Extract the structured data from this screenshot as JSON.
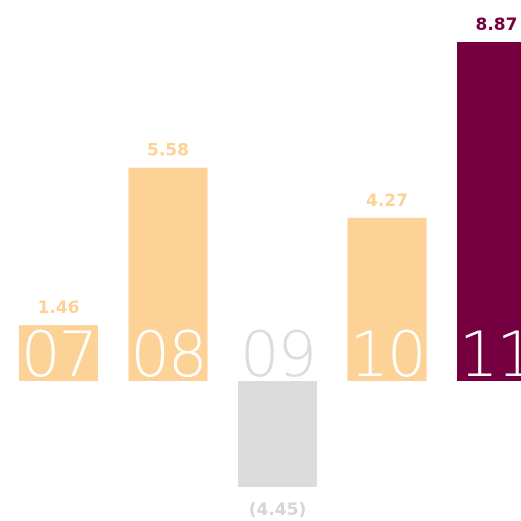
{
  "chart_data": {
    "type": "bar",
    "title": "",
    "xlabel": "",
    "ylabel": "",
    "categories": [
      "07",
      "08",
      "09",
      "10",
      "11"
    ],
    "values": [
      1.46,
      5.58,
      -4.45,
      4.27,
      8.87
    ],
    "value_labels": [
      "1.46",
      "5.58",
      "(4.45)",
      "4.27",
      "8.87"
    ],
    "ylim": [
      -4.45,
      8.87
    ],
    "grid": false,
    "legend": "none",
    "colors": {
      "positive": "#fdd296",
      "negative": "#dcdcdc",
      "highlight": "#76003f",
      "positive_label": "#fdd296",
      "negative_label": "#d5d5d5",
      "highlight_label": "#76003f",
      "category_text_on_bar": "#ffffff",
      "category_text_negative": "#dcdcdc"
    },
    "highlight_index": 4
  }
}
